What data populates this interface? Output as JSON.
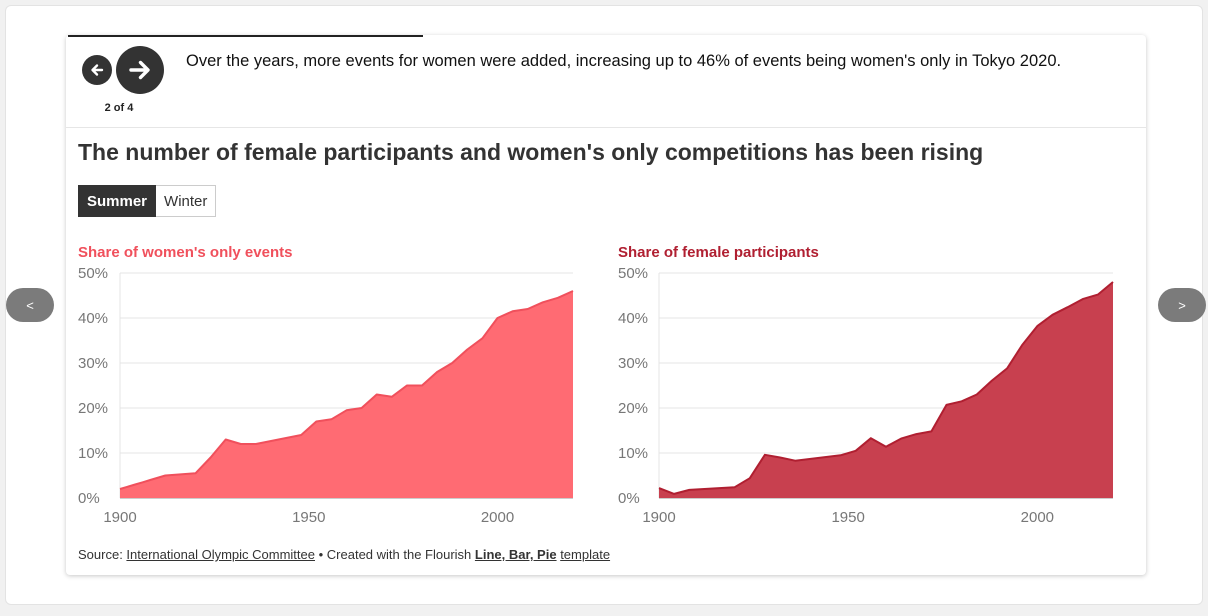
{
  "nav": {
    "prev_label": "<",
    "next_label": ">"
  },
  "story": {
    "caption": "Over the years, more events for women were added, increasing up to 46% of events being women's only in Tokyo 2020.",
    "counter": "2 of 4",
    "progress_fraction": 0.33
  },
  "title": "The number of female participants and women's only competitions has been rising",
  "toggle": {
    "options": [
      "Summer",
      "Winter"
    ],
    "selected": "Summer"
  },
  "source": {
    "prefix": "Source: ",
    "org": "International Olympic Committee",
    "middle": " • Created with the Flourish ",
    "template_types": "Line, Bar, Pie",
    "template_word": "template"
  },
  "chart_data": [
    {
      "type": "area",
      "title": "Share of women's only events",
      "color": "#ff6b73",
      "line_color": "#f0505c",
      "x": [
        1900,
        1904,
        1906,
        1908,
        1912,
        1920,
        1924,
        1928,
        1932,
        1936,
        1948,
        1952,
        1956,
        1960,
        1964,
        1968,
        1972,
        1976,
        1980,
        1984,
        1988,
        1992,
        1996,
        2000,
        2004,
        2008,
        2012,
        2016,
        2020
      ],
      "values": [
        2,
        3,
        3.5,
        4,
        5,
        5.5,
        9,
        13,
        12,
        12,
        14,
        17,
        17.5,
        19.5,
        20,
        23,
        22.5,
        25,
        25,
        28,
        30,
        33,
        35.5,
        40,
        41.5,
        42,
        43.5,
        44.5,
        46
      ],
      "xlim": [
        1900,
        2020
      ],
      "ylim": [
        0,
        50
      ],
      "xticks": [
        "1900",
        "1950",
        "2000"
      ],
      "yticks": [
        "0%",
        "10%",
        "20%",
        "30%",
        "40%",
        "50%"
      ],
      "grid": true
    },
    {
      "type": "area",
      "title": "Share of female participants",
      "color": "#c8404f",
      "line_color": "#b01f31",
      "x": [
        1900,
        1904,
        1908,
        1912,
        1920,
        1924,
        1928,
        1932,
        1936,
        1948,
        1952,
        1956,
        1960,
        1964,
        1968,
        1972,
        1976,
        1980,
        1984,
        1988,
        1992,
        1996,
        2000,
        2004,
        2008,
        2012,
        2016,
        2020
      ],
      "values": [
        2.2,
        0.9,
        1.8,
        2,
        2.4,
        4.4,
        9.6,
        9,
        8.3,
        9.5,
        10.5,
        13.3,
        11.4,
        13.2,
        14.2,
        14.8,
        20.7,
        21.5,
        23,
        26.1,
        28.8,
        34,
        38.2,
        40.7,
        42.4,
        44.2,
        45.2,
        48
      ],
      "xlim": [
        1900,
        2020
      ],
      "ylim": [
        0,
        50
      ],
      "xticks": [
        "1900",
        "1950",
        "2000"
      ],
      "yticks": [
        "0%",
        "10%",
        "20%",
        "30%",
        "40%",
        "50%"
      ],
      "grid": true
    }
  ]
}
